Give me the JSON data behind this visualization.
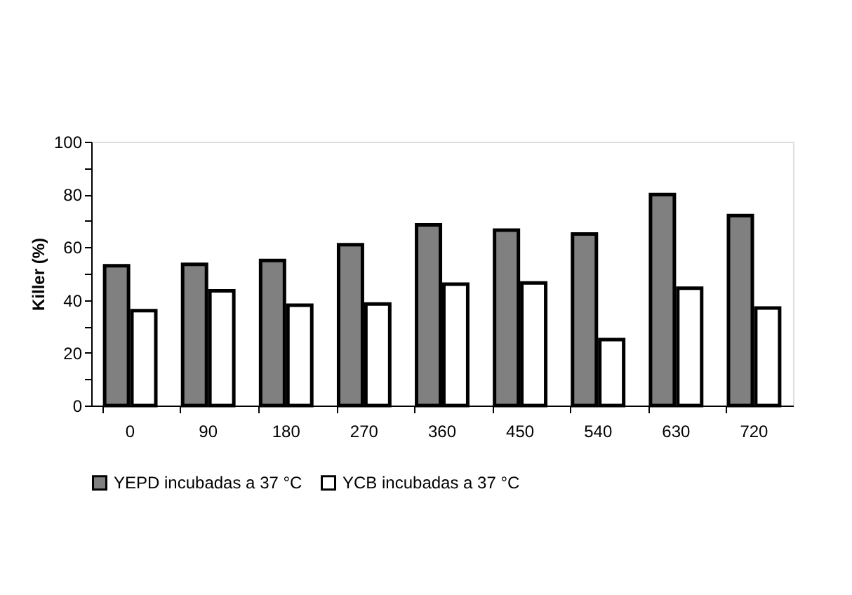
{
  "chart_data": {
    "type": "bar",
    "ylabel": "Killer (%)",
    "categories": [
      "0",
      "90",
      "180",
      "270",
      "360",
      "450",
      "540",
      "630",
      "720"
    ],
    "series": [
      {
        "name": "YEPD incubadas a 37 °C",
        "color": "#808080",
        "values": [
          53,
          53.5,
          55,
          61,
          68.5,
          66.5,
          65,
          80,
          72
        ]
      },
      {
        "name": "YCB incubadas a 37 °C",
        "color": "#ffffff",
        "values": [
          36,
          43.5,
          38,
          38.5,
          46,
          46.5,
          25,
          44.5,
          37
        ]
      }
    ],
    "ylim": [
      0,
      100
    ],
    "yticks": [
      0,
      {
        "value": 10,
        "label": null
      },
      20,
      {
        "value": 30,
        "label": null
      },
      40,
      {
        "value": 50,
        "label": null
      },
      60,
      {
        "value": 70,
        "label": null
      },
      80,
      {
        "value": 90,
        "label": null
      },
      100
    ],
    "grid": false,
    "legend": "bottom"
  }
}
